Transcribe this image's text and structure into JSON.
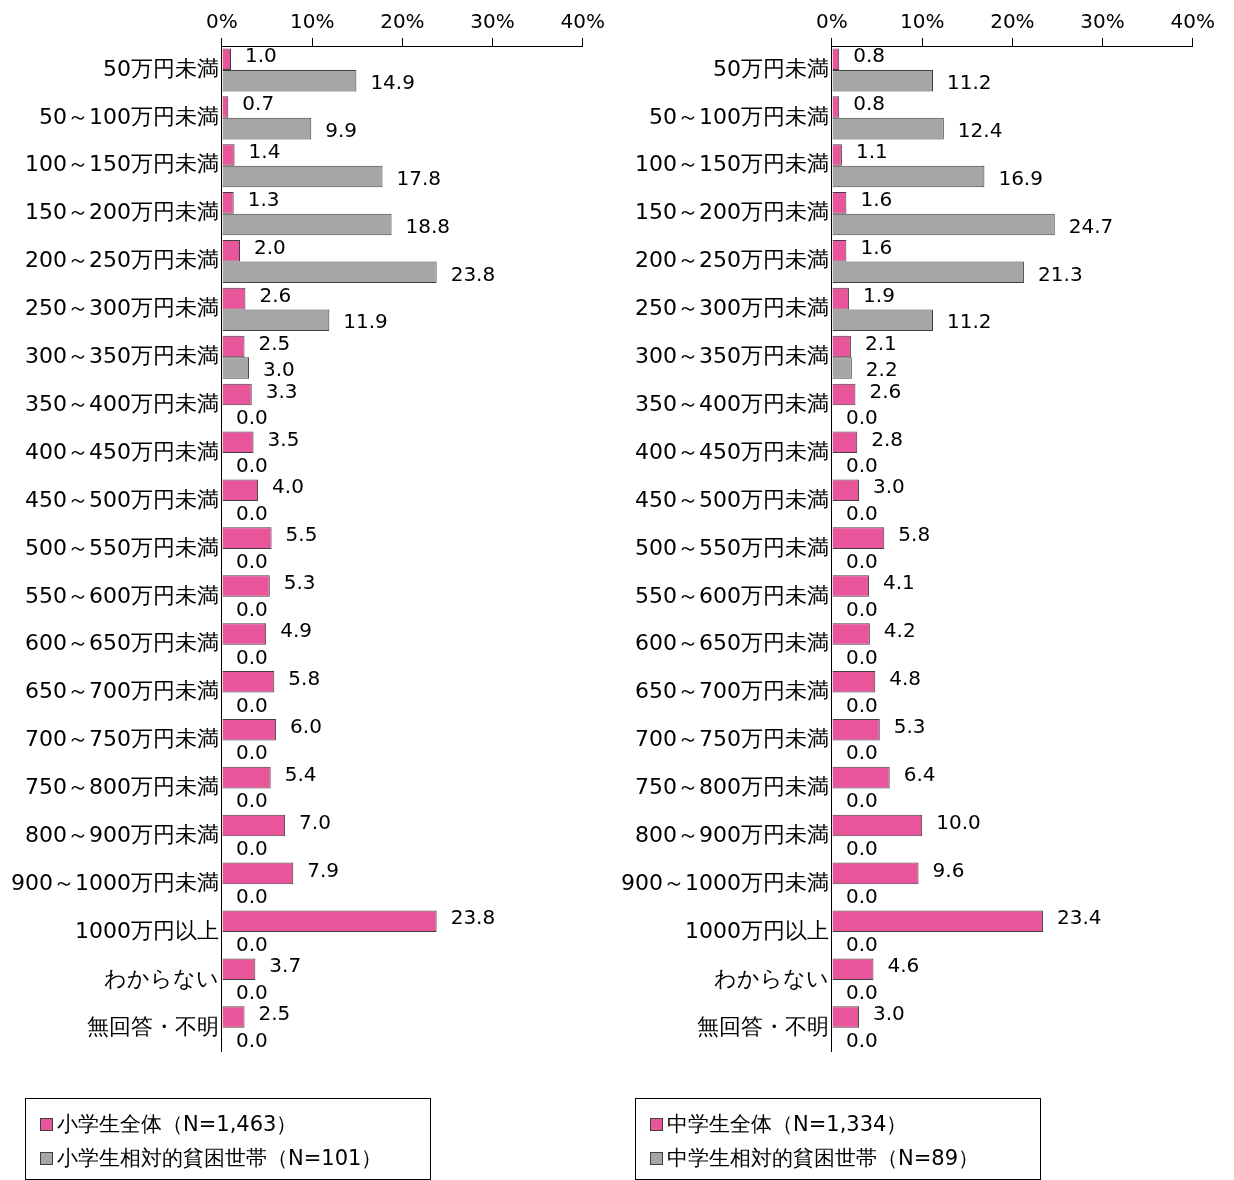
{
  "chart_data": [
    {
      "type": "bar",
      "orientation": "horizontal",
      "categories": [
        "50万円未満",
        "50～100万円未満",
        "100～150万円未満",
        "150～200万円未満",
        "200～250万円未満",
        "250～300万円未満",
        "300～350万円未満",
        "350～400万円未満",
        "400～450万円未満",
        "450～500万円未満",
        "500～550万円未満",
        "550～600万円未満",
        "600～650万円未満",
        "650～700万円未満",
        "700～750万円未満",
        "750～800万円未満",
        "800～900万円未満",
        "900～1000万円未満",
        "1000万円以上",
        "わからない",
        "無回答・不明"
      ],
      "series": [
        {
          "name": "小学生全体（N=1,463）",
          "color": "#e8559a",
          "values": [
            1.0,
            0.7,
            1.4,
            1.3,
            2.0,
            2.6,
            2.5,
            3.3,
            3.5,
            4.0,
            5.5,
            5.3,
            4.9,
            5.8,
            6.0,
            5.4,
            7.0,
            7.9,
            23.8,
            3.7,
            2.5
          ],
          "value_labels": [
            "1.0",
            "0.7",
            "1.4",
            "1.3",
            "2.0",
            "2.6",
            "2.5",
            "3.3",
            "3.5",
            "4.0",
            "5.5",
            "5.3",
            "4.9",
            "5.8",
            "6.0",
            "5.4",
            "7.0",
            "7.9",
            "23.8",
            "3.7",
            "2.5"
          ]
        },
        {
          "name": "小学生相対的貧困世帯（N=101）",
          "color": "#a6a6a6",
          "values": [
            14.9,
            9.9,
            17.8,
            18.8,
            23.8,
            11.9,
            3.0,
            0,
            0,
            0,
            0,
            0,
            0,
            0,
            0,
            0,
            0,
            0,
            0,
            0,
            0
          ],
          "value_labels": [
            "14.9",
            "9.9",
            "17.8",
            "18.8",
            "23.8",
            "11.9",
            "3.0",
            "0.0",
            "0.0",
            "0.0",
            "0.0",
            "0.0",
            "0.0",
            "0.0",
            "0.0",
            "0.0",
            "0.0",
            "0.0",
            "0.0",
            "0.0",
            "0.0"
          ]
        }
      ],
      "xlim": [
        0,
        40
      ],
      "xticks": [
        {
          "value": 0,
          "label": "0%"
        },
        {
          "value": 10,
          "label": "10%"
        },
        {
          "value": 20,
          "label": "20%"
        },
        {
          "value": 30,
          "label": "30%"
        },
        {
          "value": 40,
          "label": "40%"
        }
      ],
      "grid": false,
      "legend": "bottom left"
    },
    {
      "type": "bar",
      "orientation": "horizontal",
      "categories": [
        "50万円未満",
        "50～100万円未満",
        "100～150万円未満",
        "150～200万円未満",
        "200～250万円未満",
        "250～300万円未満",
        "300～350万円未満",
        "350～400万円未満",
        "400～450万円未満",
        "450～500万円未満",
        "500～550万円未満",
        "550～600万円未満",
        "600～650万円未満",
        "650～700万円未満",
        "700～750万円未満",
        "750～800万円未満",
        "800～900万円未満",
        "900～1000万円未満",
        "1000万円以上",
        "わからない",
        "無回答・不明"
      ],
      "series": [
        {
          "name": "中学生全体（N=1,334）",
          "color": "#e8559a",
          "values": [
            0.8,
            0.8,
            1.1,
            1.6,
            1.6,
            1.9,
            2.1,
            2.6,
            2.8,
            3.0,
            5.8,
            4.1,
            4.2,
            4.8,
            5.3,
            6.4,
            10.0,
            9.6,
            23.4,
            4.6,
            3.0
          ],
          "value_labels": [
            "0.8",
            "0.8",
            "1.1",
            "1.6",
            "1.6",
            "1.9",
            "2.1",
            "2.6",
            "2.8",
            "3.0",
            "5.8",
            "4.1",
            "4.2",
            "4.8",
            "5.3",
            "6.4",
            "10.0",
            "9.6",
            "23.4",
            "4.6",
            "3.0"
          ]
        },
        {
          "name": "中学生相対的貧困世帯（N=89）",
          "color": "#a6a6a6",
          "values": [
            11.2,
            12.4,
            16.9,
            24.7,
            21.3,
            11.2,
            2.2,
            0,
            0,
            0,
            0,
            0,
            0,
            0,
            0,
            0,
            0,
            0,
            0,
            0,
            0
          ],
          "value_labels": [
            "11.2",
            "12.4",
            "16.9",
            "24.7",
            "21.3",
            "11.2",
            "2.2",
            "0.0",
            "0.0",
            "0.0",
            "0.0",
            "0.0",
            "0.0",
            "0.0",
            "0.0",
            "0.0",
            "0.0",
            "0.0",
            "0.0",
            "0.0",
            "0.0"
          ]
        }
      ],
      "xlim": [
        0,
        40
      ],
      "xticks": [
        {
          "value": 0,
          "label": "0%"
        },
        {
          "value": 10,
          "label": "10%"
        },
        {
          "value": 20,
          "label": "20%"
        },
        {
          "value": 30,
          "label": "30%"
        },
        {
          "value": 40,
          "label": "40%"
        }
      ],
      "grid": false,
      "legend": "bottom left"
    }
  ]
}
